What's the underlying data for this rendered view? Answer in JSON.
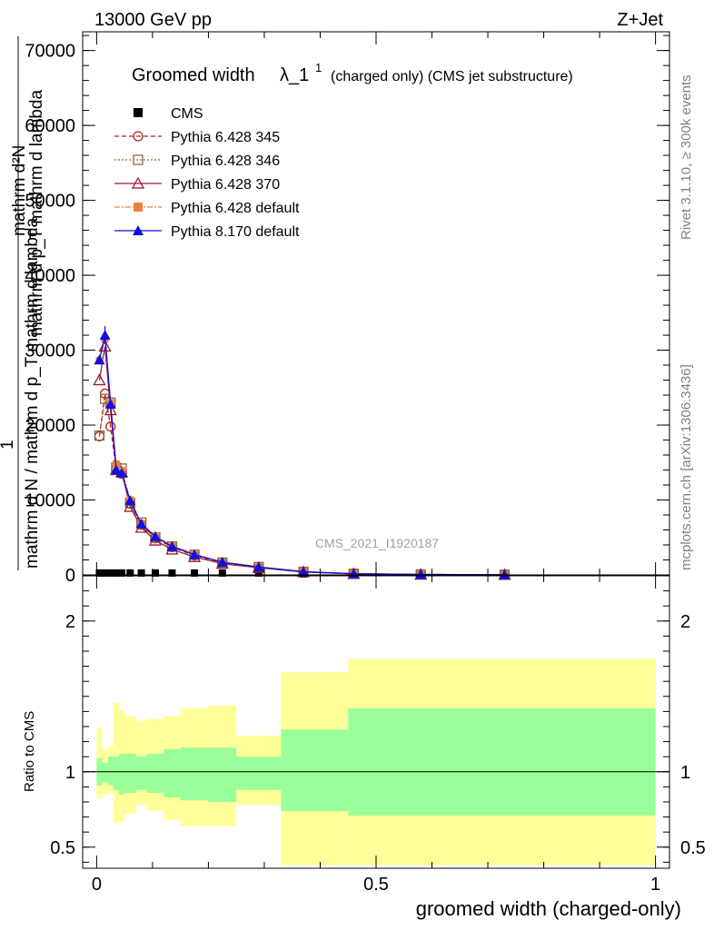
{
  "header": {
    "energy": "13000 GeV pp",
    "process": "Z+Jet"
  },
  "title": {
    "main": "Groomed width",
    "lambda": "λ_1",
    "superscript": "1",
    "suffix": "(charged only) (CMS jet substructure)"
  },
  "watermark": "CMS_2021_I1920187",
  "side": {
    "rivet": "Rivet 3.1.10, ≥ 300k events",
    "mcplots": "mcplots.cern.ch [arXiv:1306.3436]"
  },
  "y_main_label": {
    "numerator": "1",
    "denominator": "mathrm d N / mathrm d p_T mathrm d lambda",
    "top": "mathrm d²N",
    "top2": "mathrm d p_T mathrm d lambda"
  },
  "y_ratio_label": "Ratio to CMS",
  "x_label": "groomed width (charged-only)",
  "colors": {
    "cms": "#000000",
    "p345": "#b22222",
    "p346": "#8b6c3a",
    "p370": "#9b1b30",
    "p6def": "#f08040",
    "p8def": "#1010e0",
    "band_inner": "#99ff99",
    "band_outer": "#ffff99"
  },
  "chart_data": [
    {
      "type": "line",
      "xlim": [
        -0.025,
        1.025
      ],
      "ylim": [
        0,
        72500
      ],
      "yticks": [
        0,
        10000,
        20000,
        30000,
        40000,
        50000,
        60000,
        70000
      ],
      "yticklabels": [
        "0",
        "10000",
        "20000",
        "30000",
        "40000",
        "50000",
        "60000",
        "70000"
      ],
      "xticks": [
        0,
        0.5,
        1
      ],
      "series": [
        {
          "name": "CMS",
          "key": "cms",
          "marker": "square",
          "x": [
            0.005,
            0.015,
            0.025,
            0.035,
            0.045,
            0.06,
            0.08,
            0.105,
            0.135,
            0.175,
            0.225,
            0.29,
            0.37,
            0.46,
            0.58,
            0.73
          ],
          "y": [
            250,
            250,
            250,
            250,
            250,
            250,
            250,
            250,
            250,
            250,
            250,
            250,
            120,
            80,
            50,
            30
          ]
        },
        {
          "name": "Pythia 6.428 345",
          "key": "p345",
          "marker": "circle-open",
          "dash": "5,3",
          "x": [
            0.005,
            0.015,
            0.025,
            0.035,
            0.045,
            0.06,
            0.08,
            0.105,
            0.135,
            0.175,
            0.225,
            0.29,
            0.37,
            0.46,
            0.58,
            0.73
          ],
          "y": [
            18500,
            24200,
            19800,
            14100,
            13500,
            9500,
            6700,
            4900,
            3700,
            2600,
            1600,
            1000,
            400,
            150,
            60,
            20
          ]
        },
        {
          "name": "Pythia 6.428 346",
          "key": "p346",
          "marker": "square-open",
          "dash": "2,2",
          "x": [
            0.005,
            0.015,
            0.025,
            0.035,
            0.045,
            0.06,
            0.08,
            0.105,
            0.135,
            0.175,
            0.225,
            0.29,
            0.37,
            0.46,
            0.58,
            0.73
          ],
          "y": [
            18600,
            23500,
            23000,
            14300,
            14200,
            9600,
            7000,
            5000,
            3800,
            2700,
            1650,
            1050,
            420,
            160,
            60,
            20
          ]
        },
        {
          "name": "Pythia 6.428 370",
          "key": "p370",
          "marker": "triangle-open",
          "dash": "",
          "x": [
            0.005,
            0.015,
            0.025,
            0.035,
            0.045,
            0.06,
            0.08,
            0.105,
            0.135,
            0.175,
            0.225,
            0.29,
            0.37,
            0.46,
            0.58,
            0.73
          ],
          "y": [
            26000,
            30500,
            22000,
            14000,
            13700,
            9100,
            6300,
            4600,
            3400,
            2400,
            1500,
            950,
            380,
            140,
            55,
            18
          ]
        },
        {
          "name": "Pythia 6.428 default",
          "key": "p6def",
          "marker": "square-filled",
          "dash": "6,2,2,2",
          "x": [
            0.005,
            0.015,
            0.025,
            0.035,
            0.045,
            0.06,
            0.08,
            0.105,
            0.135,
            0.175,
            0.225,
            0.29,
            0.37,
            0.46,
            0.58,
            0.73
          ],
          "y": [
            28600,
            31500,
            23000,
            14800,
            13900,
            10000,
            6900,
            5200,
            3900,
            2800,
            1700,
            1100,
            440,
            170,
            65,
            22
          ]
        },
        {
          "name": "Pythia 8.170 default",
          "key": "p8def",
          "marker": "triangle-filled",
          "dash": "",
          "x": [
            0.005,
            0.015,
            0.025,
            0.035,
            0.045,
            0.06,
            0.08,
            0.105,
            0.135,
            0.175,
            0.225,
            0.29,
            0.37,
            0.46,
            0.58,
            0.73
          ],
          "y": [
            28700,
            32000,
            22800,
            14000,
            13600,
            9900,
            6800,
            5100,
            3800,
            2700,
            1700,
            1050,
            430,
            165,
            62,
            21
          ]
        }
      ]
    },
    {
      "type": "area",
      "xlim": [
        -0.025,
        1.025
      ],
      "ylim": [
        0.36,
        2.3
      ],
      "yticks": [
        0.5,
        1,
        2
      ],
      "yticklabels": [
        "0.5",
        "1",
        "2"
      ],
      "xticks": [
        0,
        0.5,
        1
      ],
      "xticklabels": [
        "0",
        "0.5",
        "1"
      ],
      "bins": [
        {
          "x0": 0.0,
          "x1": 0.01,
          "in_lo": 0.91,
          "in_hi": 1.09,
          "out_lo": 0.82,
          "out_hi": 1.29
        },
        {
          "x0": 0.01,
          "x1": 0.02,
          "in_lo": 0.93,
          "in_hi": 1.06,
          "out_lo": 0.85,
          "out_hi": 1.15
        },
        {
          "x0": 0.02,
          "x1": 0.03,
          "in_lo": 0.91,
          "in_hi": 1.1,
          "out_lo": 0.86,
          "out_hi": 1.17
        },
        {
          "x0": 0.03,
          "x1": 0.04,
          "in_lo": 0.88,
          "in_hi": 1.1,
          "out_lo": 0.66,
          "out_hi": 1.46
        },
        {
          "x0": 0.04,
          "x1": 0.05,
          "in_lo": 0.85,
          "in_hi": 1.12,
          "out_lo": 0.67,
          "out_hi": 1.41
        },
        {
          "x0": 0.05,
          "x1": 0.07,
          "in_lo": 0.86,
          "in_hi": 1.12,
          "out_lo": 0.72,
          "out_hi": 1.37
        },
        {
          "x0": 0.07,
          "x1": 0.09,
          "in_lo": 0.88,
          "in_hi": 1.1,
          "out_lo": 0.78,
          "out_hi": 1.34
        },
        {
          "x0": 0.09,
          "x1": 0.12,
          "in_lo": 0.86,
          "in_hi": 1.12,
          "out_lo": 0.74,
          "out_hi": 1.35
        },
        {
          "x0": 0.12,
          "x1": 0.15,
          "in_lo": 0.83,
          "in_hi": 1.15,
          "out_lo": 0.68,
          "out_hi": 1.37
        },
        {
          "x0": 0.15,
          "x1": 0.2,
          "in_lo": 0.81,
          "in_hi": 1.16,
          "out_lo": 0.64,
          "out_hi": 1.42
        },
        {
          "x0": 0.2,
          "x1": 0.25,
          "in_lo": 0.8,
          "in_hi": 1.16,
          "out_lo": 0.64,
          "out_hi": 1.44
        },
        {
          "x0": 0.25,
          "x1": 0.33,
          "in_lo": 0.88,
          "in_hi": 1.1,
          "out_lo": 0.78,
          "out_hi": 1.24
        },
        {
          "x0": 0.33,
          "x1": 0.45,
          "in_lo": 0.74,
          "in_hi": 1.28,
          "out_lo": 0.38,
          "out_hi": 1.66
        },
        {
          "x0": 0.45,
          "x1": 1.0,
          "in_lo": 0.71,
          "in_hi": 1.42,
          "out_lo": 0.38,
          "out_hi": 1.75
        }
      ]
    }
  ]
}
